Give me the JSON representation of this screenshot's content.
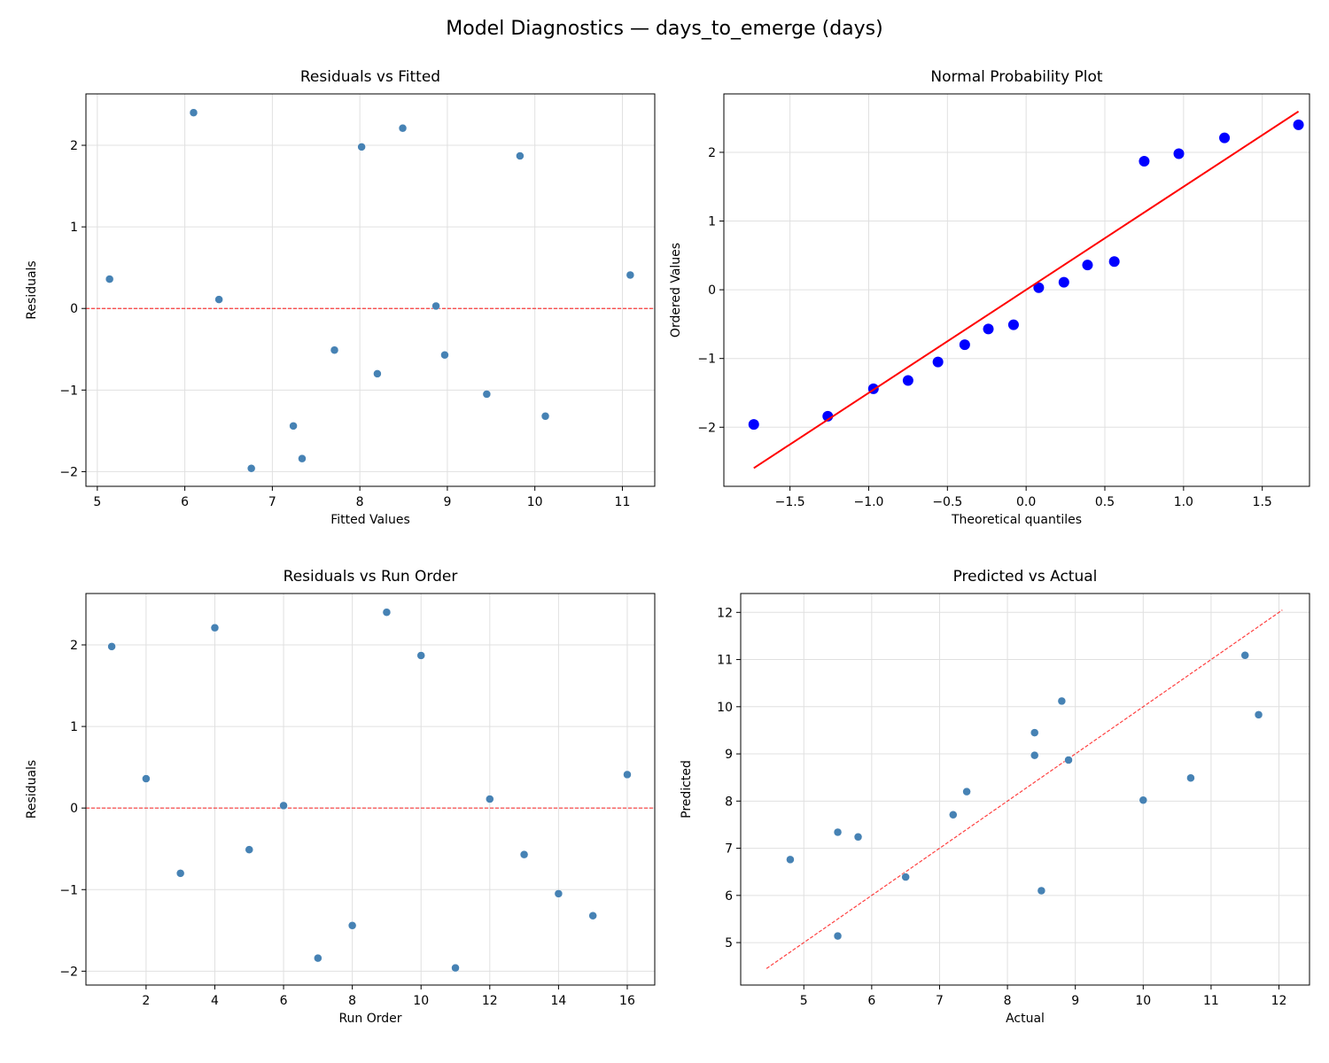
{
  "suptitle": "Model Diagnostics — days_to_emerge (days)",
  "colors": {
    "points": "#4682b4",
    "qq_points": "#0000ff",
    "ref_line": "#ff0000",
    "grid": "#e0e0e0"
  },
  "chart_data": [
    {
      "id": "residuals-vs-fitted",
      "type": "scatter",
      "title": "Residuals vs Fitted",
      "xlabel": "Fitted Values",
      "ylabel": "Residuals",
      "xlim": [
        4.87,
        11.37
      ],
      "ylim": [
        -2.18,
        2.63
      ],
      "xticks": [
        5,
        6,
        7,
        8,
        9,
        10,
        11
      ],
      "yticks": [
        -2,
        -1,
        0,
        1,
        2
      ],
      "grid": true,
      "x": [
        8.02,
        5.14,
        8.2,
        8.49,
        7.71,
        8.87,
        7.34,
        7.24,
        6.1,
        9.83,
        6.76,
        6.39,
        8.97,
        9.45,
        10.12,
        11.09
      ],
      "y": [
        1.98,
        0.36,
        -0.8,
        2.21,
        -0.51,
        0.03,
        -1.84,
        -1.44,
        2.4,
        1.87,
        -1.96,
        0.11,
        -0.57,
        -1.05,
        -1.32,
        0.41
      ],
      "hline": 0
    },
    {
      "id": "normal-probability-plot",
      "type": "scatter",
      "title": "Normal Probability Plot",
      "xlabel": "Theoretical quantiles",
      "ylabel": "Ordered Values",
      "xlim": [
        -1.92,
        1.8
      ],
      "ylim": [
        -2.86,
        2.85
      ],
      "xticks": [
        -1.5,
        -1.0,
        -0.5,
        0.0,
        0.5,
        1.0,
        1.5
      ],
      "yticks": [
        -2,
        -1,
        0,
        1,
        2
      ],
      "grid": true,
      "x": [
        -1.73,
        -1.26,
        -0.97,
        -0.75,
        -0.56,
        -0.39,
        -0.24,
        -0.08,
        0.08,
        0.24,
        0.39,
        0.56,
        0.75,
        0.97,
        1.26,
        1.73
      ],
      "y": [
        -1.96,
        -1.84,
        -1.44,
        -1.32,
        -1.05,
        -0.8,
        -0.57,
        -0.51,
        0.03,
        0.11,
        0.36,
        0.41,
        1.87,
        1.98,
        2.21,
        2.4
      ],
      "fit_line": {
        "slope": 1.5,
        "intercept": 0.0,
        "x_range": [
          -1.73,
          1.73
        ]
      }
    },
    {
      "id": "residuals-vs-run-order",
      "type": "scatter",
      "title": "Residuals vs Run Order",
      "xlabel": "Run Order",
      "ylabel": "Residuals",
      "xlim": [
        0.25,
        16.8
      ],
      "ylim": [
        -2.17,
        2.63
      ],
      "xticks": [
        2,
        4,
        6,
        8,
        10,
        12,
        14,
        16
      ],
      "yticks": [
        -2,
        -1,
        0,
        1,
        2
      ],
      "grid": true,
      "x": [
        1,
        2,
        3,
        4,
        5,
        6,
        7,
        8,
        9,
        10,
        11,
        12,
        13,
        14,
        15,
        16
      ],
      "y": [
        1.98,
        0.36,
        -0.8,
        2.21,
        -0.51,
        0.03,
        -1.84,
        -1.44,
        2.4,
        1.87,
        -1.96,
        0.11,
        -0.57,
        -1.05,
        -1.32,
        0.41
      ],
      "hline": 0
    },
    {
      "id": "predicted-vs-actual",
      "type": "scatter",
      "title": "Predicted vs Actual",
      "xlabel": "Actual",
      "ylabel": "Predicted",
      "xlim": [
        4.07,
        12.45
      ],
      "ylim": [
        4.1,
        12.4
      ],
      "xticks": [
        5,
        6,
        7,
        8,
        9,
        10,
        11,
        12
      ],
      "yticks": [
        5,
        6,
        7,
        8,
        9,
        10,
        11,
        12
      ],
      "grid": true,
      "x": [
        10.0,
        5.5,
        7.4,
        10.7,
        7.2,
        8.9,
        5.5,
        5.8,
        8.5,
        11.7,
        4.8,
        6.5,
        8.4,
        8.4,
        8.8,
        11.5
      ],
      "y": [
        8.02,
        5.14,
        8.2,
        8.49,
        7.71,
        8.87,
        7.34,
        7.24,
        6.1,
        9.83,
        6.76,
        6.39,
        8.97,
        9.45,
        10.12,
        11.09
      ],
      "diagonal": [
        4.45,
        12.05
      ]
    }
  ]
}
